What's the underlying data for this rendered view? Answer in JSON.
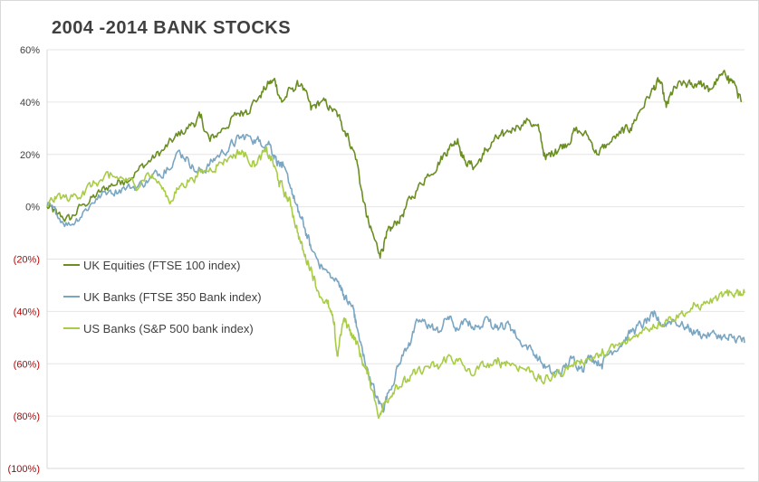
{
  "chart_data": {
    "type": "line",
    "title": "2004 -2014  BANK STOCKS",
    "xlabel": "",
    "ylabel": "",
    "ylim": [
      -100,
      60
    ],
    "yticks": [
      {
        "value": 60,
        "label": "60%",
        "color": "#404040"
      },
      {
        "value": 40,
        "label": "40%",
        "color": "#404040"
      },
      {
        "value": 20,
        "label": "20%",
        "color": "#404040"
      },
      {
        "value": 0,
        "label": "0%",
        "color": "#404040"
      },
      {
        "value": -20,
        "label": "(20%)",
        "color": "#c00000"
      },
      {
        "value": -40,
        "label": "(40%)",
        "color": "#c00000"
      },
      {
        "value": -60,
        "label": "(60%)",
        "color": "#c00000"
      },
      {
        "value": -80,
        "label": "(80%)",
        "color": "#c00000"
      },
      {
        "value": -100,
        "label": "(100%)",
        "color": "#c00000"
      }
    ],
    "x_range": [
      2004.0,
      2014.7
    ],
    "grid": "horizontal",
    "legend_position": "middle-left",
    "series": [
      {
        "name": "UK Equities (FTSE 100 index)",
        "color": "#6b8e23",
        "points": [
          [
            2004.0,
            0
          ],
          [
            2004.15,
            -3
          ],
          [
            2004.35,
            -5
          ],
          [
            2004.55,
            1
          ],
          [
            2004.75,
            4
          ],
          [
            2004.95,
            8
          ],
          [
            2005.15,
            10
          ],
          [
            2005.4,
            14
          ],
          [
            2005.6,
            18
          ],
          [
            2005.8,
            22
          ],
          [
            2006.0,
            27
          ],
          [
            2006.2,
            31
          ],
          [
            2006.35,
            34
          ],
          [
            2006.5,
            25
          ],
          [
            2006.7,
            30
          ],
          [
            2006.9,
            35
          ],
          [
            2007.05,
            37
          ],
          [
            2007.25,
            42
          ],
          [
            2007.4,
            47
          ],
          [
            2007.5,
            48
          ],
          [
            2007.6,
            40
          ],
          [
            2007.75,
            45
          ],
          [
            2007.9,
            47
          ],
          [
            2008.05,
            37
          ],
          [
            2008.2,
            40
          ],
          [
            2008.35,
            38
          ],
          [
            2008.5,
            33
          ],
          [
            2008.6,
            28
          ],
          [
            2008.75,
            18
          ],
          [
            2008.85,
            2
          ],
          [
            2008.95,
            -8
          ],
          [
            2009.1,
            -18
          ],
          [
            2009.2,
            -12
          ],
          [
            2009.3,
            -8
          ],
          [
            2009.45,
            -3
          ],
          [
            2009.6,
            4
          ],
          [
            2009.8,
            11
          ],
          [
            2010.0,
            17
          ],
          [
            2010.15,
            22
          ],
          [
            2010.3,
            26
          ],
          [
            2010.4,
            18
          ],
          [
            2010.55,
            15
          ],
          [
            2010.7,
            20
          ],
          [
            2010.85,
            25
          ],
          [
            2011.0,
            27
          ],
          [
            2011.2,
            31
          ],
          [
            2011.4,
            33
          ],
          [
            2011.55,
            29
          ],
          [
            2011.65,
            18
          ],
          [
            2011.8,
            22
          ],
          [
            2011.95,
            24
          ],
          [
            2012.1,
            29
          ],
          [
            2012.3,
            27
          ],
          [
            2012.45,
            20
          ],
          [
            2012.6,
            24
          ],
          [
            2012.8,
            28
          ],
          [
            2012.95,
            30
          ],
          [
            2013.1,
            37
          ],
          [
            2013.3,
            45
          ],
          [
            2013.4,
            48
          ],
          [
            2013.5,
            38
          ],
          [
            2013.6,
            44
          ],
          [
            2013.75,
            47
          ],
          [
            2013.9,
            46
          ],
          [
            2014.0,
            48
          ],
          [
            2014.15,
            44
          ],
          [
            2014.3,
            49
          ],
          [
            2014.45,
            50
          ],
          [
            2014.55,
            47
          ],
          [
            2014.65,
            40
          ]
        ]
      },
      {
        "name": "UK Banks (FTSE 350 Bank index)",
        "color": "#7aa6c2",
        "points": [
          [
            2004.0,
            0
          ],
          [
            2004.15,
            -3
          ],
          [
            2004.35,
            -7
          ],
          [
            2004.55,
            -2
          ],
          [
            2004.75,
            3
          ],
          [
            2004.95,
            6
          ],
          [
            2005.15,
            7
          ],
          [
            2005.4,
            8
          ],
          [
            2005.6,
            11
          ],
          [
            2005.8,
            14
          ],
          [
            2006.0,
            21
          ],
          [
            2006.15,
            19
          ],
          [
            2006.3,
            13
          ],
          [
            2006.45,
            15
          ],
          [
            2006.6,
            19
          ],
          [
            2006.8,
            23
          ],
          [
            2006.95,
            26
          ],
          [
            2007.1,
            27
          ],
          [
            2007.25,
            25
          ],
          [
            2007.4,
            25
          ],
          [
            2007.5,
            19
          ],
          [
            2007.6,
            15
          ],
          [
            2007.75,
            7
          ],
          [
            2007.85,
            -2
          ],
          [
            2007.95,
            -8
          ],
          [
            2008.05,
            -16
          ],
          [
            2008.2,
            -22
          ],
          [
            2008.35,
            -27
          ],
          [
            2008.5,
            -30
          ],
          [
            2008.6,
            -36
          ],
          [
            2008.7,
            -39
          ],
          [
            2008.75,
            -46
          ],
          [
            2008.85,
            -57
          ],
          [
            2008.95,
            -65
          ],
          [
            2009.05,
            -73
          ],
          [
            2009.15,
            -77
          ],
          [
            2009.25,
            -70
          ],
          [
            2009.4,
            -60
          ],
          [
            2009.55,
            -52
          ],
          [
            2009.7,
            -44
          ],
          [
            2009.85,
            -45
          ],
          [
            2010.0,
            -48
          ],
          [
            2010.15,
            -42
          ],
          [
            2010.3,
            -47
          ],
          [
            2010.45,
            -44
          ],
          [
            2010.6,
            -46
          ],
          [
            2010.8,
            -43
          ],
          [
            2010.95,
            -46
          ],
          [
            2011.1,
            -45
          ],
          [
            2011.25,
            -51
          ],
          [
            2011.45,
            -55
          ],
          [
            2011.6,
            -60
          ],
          [
            2011.75,
            -64
          ],
          [
            2011.9,
            -63
          ],
          [
            2012.05,
            -58
          ],
          [
            2012.2,
            -61
          ],
          [
            2012.35,
            -57
          ],
          [
            2012.5,
            -60
          ],
          [
            2012.65,
            -55
          ],
          [
            2012.85,
            -51
          ],
          [
            2013.0,
            -47
          ],
          [
            2013.15,
            -45
          ],
          [
            2013.3,
            -42
          ],
          [
            2013.45,
            -45
          ],
          [
            2013.6,
            -43
          ],
          [
            2013.8,
            -46
          ],
          [
            2013.95,
            -48
          ],
          [
            2014.1,
            -49
          ],
          [
            2014.3,
            -49
          ],
          [
            2014.45,
            -51
          ],
          [
            2014.6,
            -50
          ],
          [
            2014.7,
            -52
          ]
        ]
      },
      {
        "name": "US Banks (S&P 500 bank index)",
        "color": "#a9cc47",
        "points": [
          [
            2004.0,
            0
          ],
          [
            2004.15,
            4
          ],
          [
            2004.35,
            3
          ],
          [
            2004.55,
            6
          ],
          [
            2004.75,
            9
          ],
          [
            2004.95,
            11
          ],
          [
            2005.15,
            11
          ],
          [
            2005.35,
            8
          ],
          [
            2005.55,
            13
          ],
          [
            2005.75,
            8
          ],
          [
            2005.9,
            2
          ],
          [
            2006.05,
            8
          ],
          [
            2006.2,
            11
          ],
          [
            2006.4,
            13
          ],
          [
            2006.6,
            16
          ],
          [
            2006.8,
            19
          ],
          [
            2006.95,
            21
          ],
          [
            2007.05,
            20
          ],
          [
            2007.2,
            16
          ],
          [
            2007.35,
            21
          ],
          [
            2007.45,
            18
          ],
          [
            2007.55,
            10
          ],
          [
            2007.65,
            5
          ],
          [
            2007.75,
            0
          ],
          [
            2007.85,
            -10
          ],
          [
            2007.95,
            -19
          ],
          [
            2008.05,
            -23
          ],
          [
            2008.15,
            -32
          ],
          [
            2008.3,
            -37
          ],
          [
            2008.4,
            -45
          ],
          [
            2008.45,
            -57
          ],
          [
            2008.55,
            -43
          ],
          [
            2008.65,
            -47
          ],
          [
            2008.75,
            -52
          ],
          [
            2008.85,
            -60
          ],
          [
            2008.95,
            -66
          ],
          [
            2009.1,
            -80
          ],
          [
            2009.2,
            -74
          ],
          [
            2009.35,
            -68
          ],
          [
            2009.5,
            -67
          ],
          [
            2009.65,
            -64
          ],
          [
            2009.85,
            -61
          ],
          [
            2010.0,
            -62
          ],
          [
            2010.15,
            -57
          ],
          [
            2010.3,
            -59
          ],
          [
            2010.5,
            -64
          ],
          [
            2010.7,
            -61
          ],
          [
            2010.9,
            -60
          ],
          [
            2011.05,
            -59
          ],
          [
            2011.25,
            -61
          ],
          [
            2011.45,
            -63
          ],
          [
            2011.6,
            -67
          ],
          [
            2011.75,
            -65
          ],
          [
            2011.95,
            -62
          ],
          [
            2012.15,
            -59
          ],
          [
            2012.3,
            -58
          ],
          [
            2012.5,
            -57
          ],
          [
            2012.7,
            -54
          ],
          [
            2012.9,
            -52
          ],
          [
            2013.1,
            -48
          ],
          [
            2013.3,
            -45
          ],
          [
            2013.5,
            -43
          ],
          [
            2013.7,
            -41
          ],
          [
            2013.9,
            -39
          ],
          [
            2014.1,
            -37
          ],
          [
            2014.3,
            -35
          ],
          [
            2014.45,
            -34
          ],
          [
            2014.6,
            -32
          ],
          [
            2014.7,
            -33
          ]
        ]
      }
    ]
  }
}
